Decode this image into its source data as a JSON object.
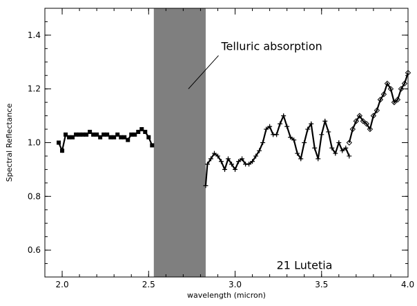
{
  "chart_data": {
    "type": "scatter",
    "title": "",
    "xlabel": "wavelength (micron)",
    "ylabel": "Spectral Reflectance",
    "xlim": [
      1.9,
      4.0
    ],
    "ylim": [
      0.5,
      1.5
    ],
    "xticks": [
      2.0,
      2.5,
      3.0,
      3.5,
      4.0
    ],
    "xtick_labels": [
      "2.0",
      "2.5",
      "3.0",
      "3.5",
      "4.0"
    ],
    "yticks": [
      0.6,
      0.8,
      1.0,
      1.2,
      1.4
    ],
    "ytick_labels": [
      "0.6",
      "0.8",
      "1.0",
      "1.2",
      "1.4"
    ],
    "grid": false,
    "shaded_region": {
      "x_start": 2.53,
      "x_end": 2.83,
      "color": "#7f7f7f"
    },
    "annotations": {
      "telluric": {
        "text": "Telluric absorption",
        "x": 2.92,
        "y": 1.36,
        "arrow_to": [
          2.73,
          1.2
        ]
      },
      "target": {
        "text": "21 Lutetia",
        "x": 3.24,
        "y": 0.545
      }
    },
    "series": [
      {
        "marker": "square",
        "x": [
          1.98,
          2.0,
          2.02,
          2.04,
          2.06,
          2.08,
          2.1,
          2.12,
          2.14,
          2.16,
          2.18,
          2.2,
          2.22,
          2.24,
          2.26,
          2.28,
          2.3,
          2.32,
          2.34,
          2.36,
          2.38,
          2.4,
          2.42,
          2.44,
          2.46,
          2.48,
          2.5,
          2.52
        ],
        "y": [
          1.0,
          0.97,
          1.03,
          1.02,
          1.02,
          1.03,
          1.03,
          1.03,
          1.03,
          1.04,
          1.03,
          1.03,
          1.02,
          1.03,
          1.03,
          1.02,
          1.02,
          1.03,
          1.02,
          1.02,
          1.01,
          1.03,
          1.03,
          1.04,
          1.05,
          1.04,
          1.02,
          0.99
        ]
      },
      {
        "marker": "plus",
        "x": [
          2.83,
          2.84,
          2.86,
          2.88,
          2.9,
          2.92,
          2.94,
          2.96,
          2.98,
          3.0,
          3.02,
          3.04,
          3.06,
          3.08,
          3.1,
          3.12,
          3.14,
          3.16,
          3.18,
          3.2,
          3.22,
          3.24,
          3.26,
          3.28,
          3.3,
          3.32,
          3.34,
          3.36,
          3.38,
          3.4,
          3.42,
          3.44,
          3.46,
          3.48,
          3.5,
          3.52,
          3.54,
          3.56,
          3.58,
          3.6,
          3.62,
          3.64,
          3.66
        ],
        "y": [
          0.84,
          0.92,
          0.94,
          0.96,
          0.95,
          0.93,
          0.9,
          0.94,
          0.92,
          0.9,
          0.93,
          0.94,
          0.92,
          0.92,
          0.93,
          0.95,
          0.97,
          1.0,
          1.05,
          1.06,
          1.03,
          1.03,
          1.07,
          1.1,
          1.06,
          1.02,
          1.01,
          0.96,
          0.94,
          1.0,
          1.05,
          1.07,
          0.98,
          0.94,
          1.03,
          1.08,
          1.04,
          0.98,
          0.96,
          1.0,
          0.97,
          0.98,
          0.95
        ]
      },
      {
        "marker": "diamond",
        "x": [
          3.66,
          3.68,
          3.7,
          3.72,
          3.74,
          3.76,
          3.78,
          3.8,
          3.82,
          3.84,
          3.86,
          3.88,
          3.9,
          3.92,
          3.94,
          3.96,
          3.98,
          4.0
        ],
        "y": [
          1.0,
          1.05,
          1.08,
          1.1,
          1.08,
          1.07,
          1.05,
          1.1,
          1.12,
          1.16,
          1.18,
          1.22,
          1.2,
          1.15,
          1.16,
          1.2,
          1.22,
          1.26
        ]
      }
    ]
  }
}
